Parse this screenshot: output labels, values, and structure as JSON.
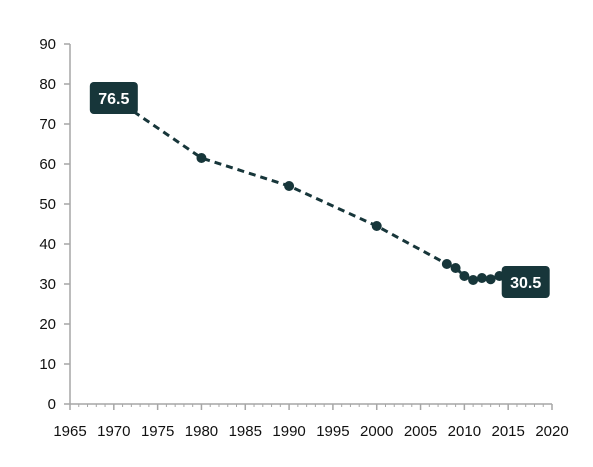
{
  "colors": {
    "series": "#17363a",
    "axis": "#a6a6a6",
    "callout_bg": "#17363a",
    "callout_text": "#ffffff",
    "tick_text": "#111111"
  },
  "chart_data": {
    "type": "line",
    "title": "",
    "xlabel": "",
    "ylabel": "",
    "xlim": [
      1965,
      2020
    ],
    "ylim": [
      0,
      90
    ],
    "x_ticks": [
      1965,
      1970,
      1975,
      1980,
      1985,
      1990,
      1995,
      2000,
      2005,
      2010,
      2015,
      2020
    ],
    "y_ticks": [
      0,
      10,
      20,
      30,
      40,
      50,
      60,
      70,
      80,
      90
    ],
    "grid": false,
    "legend": "none",
    "line_style": "dashed",
    "markers": true,
    "series": [
      {
        "x": [
          1970,
          1980,
          1990,
          2000,
          2008,
          2009,
          2010,
          2011,
          2012,
          2013,
          2014,
          2015,
          2016,
          2017
        ],
        "y": [
          76.5,
          61.5,
          54.5,
          44.5,
          35,
          34,
          32,
          31,
          31.5,
          31.2,
          32,
          32.3,
          32,
          30.5
        ]
      }
    ],
    "annotations": [
      {
        "text": "76.5",
        "x": 1970,
        "y": 76.5
      },
      {
        "text": "30.5",
        "x": 2017,
        "y": 30.5
      }
    ]
  }
}
